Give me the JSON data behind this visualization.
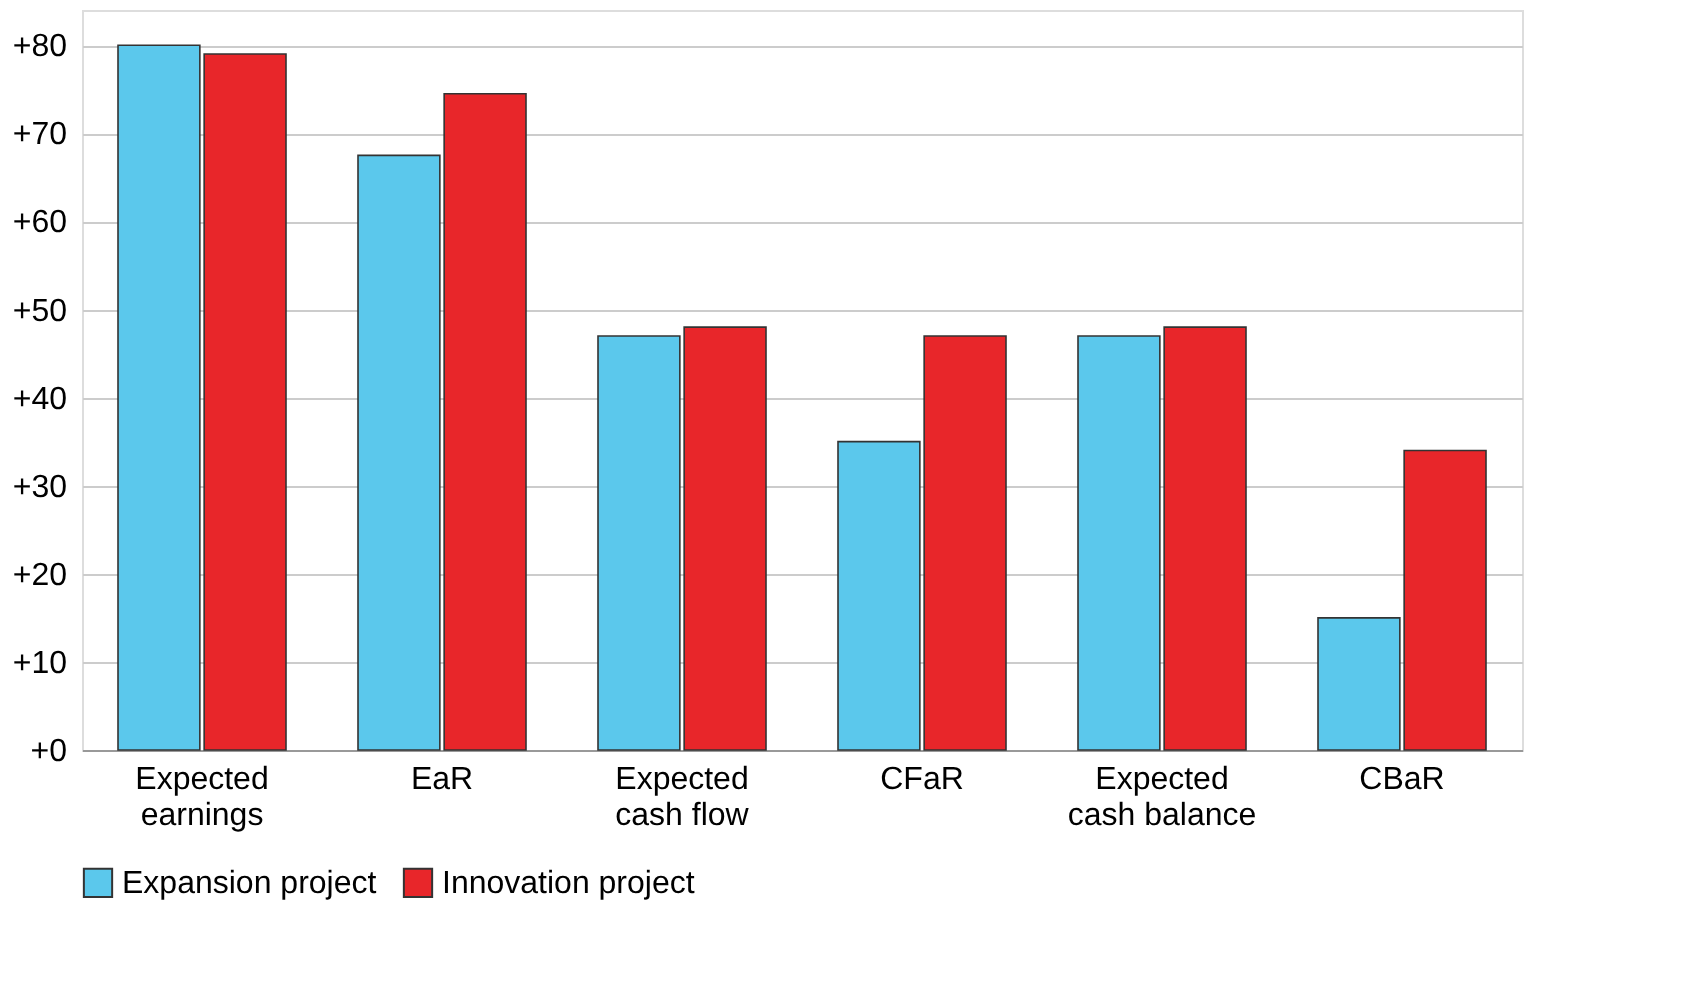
{
  "chart_data": {
    "type": "bar",
    "categories": [
      "Expected earnings",
      "EaR",
      "Expected cash flow",
      "CFaR",
      "Expected cash balance",
      "CBaR"
    ],
    "series": [
      {
        "name": "Expansion project",
        "color": "#5bc8ec",
        "values": [
          80,
          67.5,
          47,
          35,
          47,
          15
        ]
      },
      {
        "name": "Innovation project",
        "color": "#e8262a",
        "values": [
          79,
          74.5,
          48,
          47,
          48,
          34
        ]
      }
    ],
    "ylim": [
      0,
      84
    ],
    "yticks": [
      {
        "value": 0,
        "label": "+0"
      },
      {
        "value": 10,
        "label": "+10"
      },
      {
        "value": 20,
        "label": "+20"
      },
      {
        "value": 30,
        "label": "+30"
      },
      {
        "value": 40,
        "label": "+40"
      },
      {
        "value": 50,
        "label": "+50"
      },
      {
        "value": 60,
        "label": "+60"
      },
      {
        "value": 70,
        "label": "+70"
      },
      {
        "value": 80,
        "label": "+80"
      }
    ],
    "grid": "y",
    "legend": "bottom"
  }
}
